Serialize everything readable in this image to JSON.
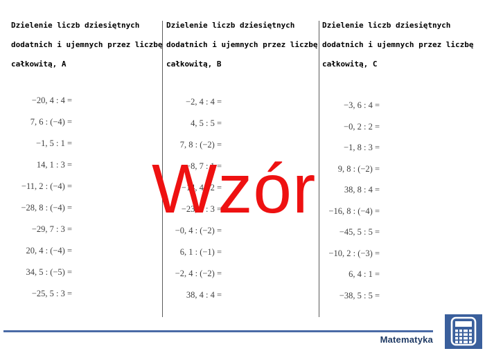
{
  "page": {
    "background": "#ffffff",
    "divider_color": "#5a5a5a"
  },
  "columns": [
    {
      "id": "A",
      "title_lines": [
        "Dzielenie liczb dziesiętnych",
        "dodatnich i ujemnych przez liczbę",
        "całkowitą, A"
      ],
      "problems": [
        "−20, 4 : 4 =",
        "7, 6 : (−4) =",
        "−1, 5 : 1 =",
        "14, 1 : 3 =",
        "−11, 2 : (−4) =",
        "−28, 8 : (−4) =",
        "−29, 7 : 3 =",
        "20, 4 : (−4) =",
        "34, 5 : (−5) =",
        "−25, 5 : 3 ="
      ]
    },
    {
      "id": "B",
      "title_lines": [
        "Dzielenie liczb dziesiętnych",
        "dodatnich i ujemnych przez liczbę",
        "całkowitą, B"
      ],
      "problems": [
        "−2, 4 : 4 =",
        "4, 5 : 5 =",
        "7, 8 : (−2) =",
        "−8, 7 : 1 =",
        "−14, 4 : 2 =",
        "−23, 1 : 3 =",
        "−0, 4 : (−2) =",
        "6, 1 : (−1) =",
        "−2, 4 : (−2) =",
        "38, 4 : 4 ="
      ]
    },
    {
      "id": "C",
      "title_lines": [
        "Dzielenie liczb dziesiętnych",
        "dodatnich i ujemnych przez liczbę",
        "całkowitą, C"
      ],
      "problems": [
        "−3, 6 : 4 =",
        "−0, 2 : 2 =",
        "−1, 8 : 3 =",
        "9, 8 : (−2) =",
        "38, 8 : 4 =",
        "−16, 8 : (−4) =",
        "−45, 5 : 5 =",
        "−10, 2 : (−3) =",
        "6, 4 : 1 =",
        "−38, 5 : 5 ="
      ]
    }
  ],
  "watermark": {
    "text": "Wzór",
    "color": "#ee1111"
  },
  "footer": {
    "label": "Matematyka",
    "label_color": "#1f3a64",
    "rule_color": "#4a6aa6",
    "icon": "calculator-icon",
    "icon_color": "#3a5f9c"
  }
}
